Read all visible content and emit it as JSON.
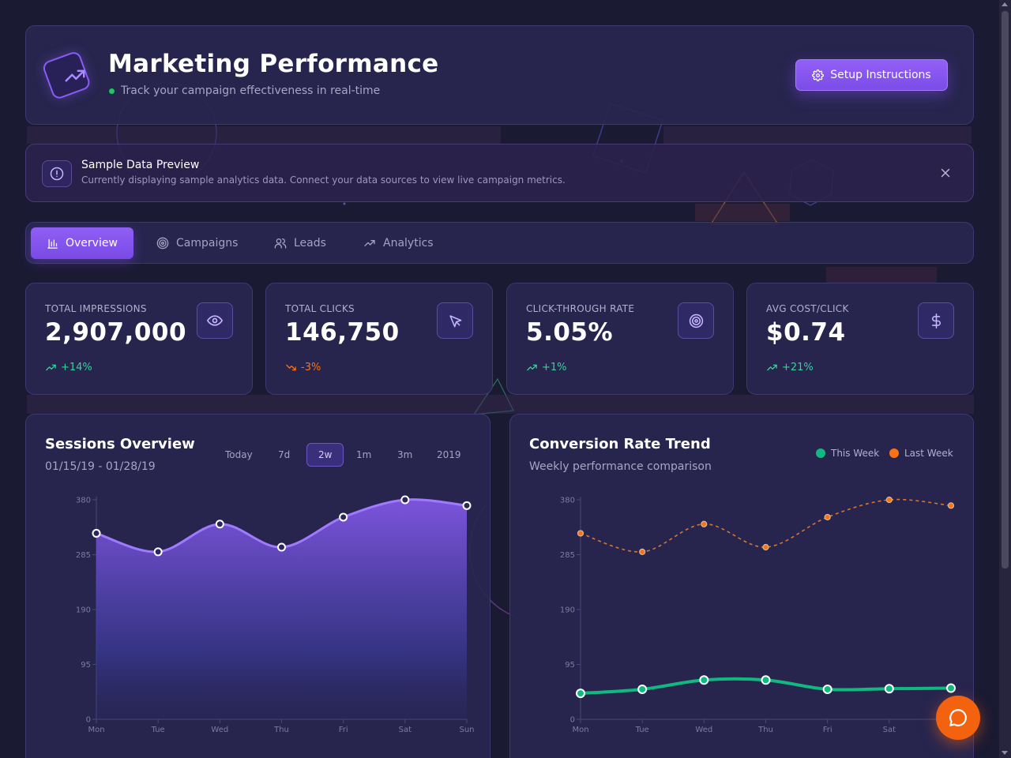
{
  "header": {
    "title": "Marketing Performance",
    "subtitle": "Track your campaign effectiveness in real-time",
    "setup_label": "Setup Instructions",
    "logo_icon": "trending-up-icon",
    "setup_icon": "gear-icon"
  },
  "notice": {
    "title": "Sample Data Preview",
    "text": "Currently displaying sample analytics data. Connect your data sources to view live campaign metrics.",
    "icon": "alert-circle-icon",
    "close_icon": "close-icon"
  },
  "tabs": [
    {
      "label": "Overview",
      "icon": "bar-chart-icon",
      "active": true
    },
    {
      "label": "Campaigns",
      "icon": "target-icon",
      "active": false
    },
    {
      "label": "Leads",
      "icon": "users-icon",
      "active": false
    },
    {
      "label": "Analytics",
      "icon": "trending-up-icon",
      "active": false
    }
  ],
  "stats": [
    {
      "label": "TOTAL IMPRESSIONS",
      "value": "2,907,000",
      "delta": "+14%",
      "trend": "up",
      "icon": "eye-icon"
    },
    {
      "label": "TOTAL CLICKS",
      "value": "146,750",
      "delta": "-3%",
      "trend": "down",
      "icon": "cursor-icon"
    },
    {
      "label": "CLICK-THROUGH RATE",
      "value": "5.05%",
      "delta": "+1%",
      "trend": "up",
      "icon": "target-icon"
    },
    {
      "label": "AVG COST/CLICK",
      "value": "$0.74",
      "delta": "+21%",
      "trend": "up",
      "icon": "dollar-icon"
    }
  ],
  "colors": {
    "accent": "#8b5cf6",
    "up": "#34d399",
    "down": "#f97316",
    "this_week": "#10b981",
    "last_week": "#f97316"
  },
  "sessions": {
    "title": "Sessions Overview",
    "date_range": "01/15/19 - 01/28/19",
    "ranges": [
      "Today",
      "7d",
      "2w",
      "1m",
      "3m",
      "2019"
    ],
    "active_range": "2w"
  },
  "conversion": {
    "title": "Conversion Rate Trend",
    "subtitle": "Weekly performance comparison",
    "legend": [
      "This Week",
      "Last Week"
    ]
  },
  "chart_data": [
    {
      "type": "area",
      "title": "Sessions Overview",
      "categories": [
        "Mon",
        "Tue",
        "Wed",
        "Thu",
        "Fri",
        "Sat",
        "Sun"
      ],
      "values": [
        322,
        290,
        338,
        298,
        350,
        380,
        370
      ],
      "y_ticks": [
        0,
        95,
        190,
        285,
        380
      ],
      "ylim": [
        0,
        380
      ],
      "grid": false
    },
    {
      "type": "line",
      "title": "Conversion Rate Trend",
      "categories": [
        "Mon",
        "Tue",
        "Wed",
        "Thu",
        "Fri",
        "Sat",
        "Sun"
      ],
      "series": [
        {
          "name": "This Week",
          "values": [
            45,
            52,
            68,
            68,
            52,
            53,
            54
          ]
        },
        {
          "name": "Last Week",
          "values": [
            322,
            290,
            338,
            298,
            350,
            380,
            370
          ]
        }
      ],
      "y_ticks": [
        0,
        95,
        190,
        285,
        380
      ],
      "ylim": [
        0,
        380
      ],
      "legend": "top-right",
      "grid": false
    }
  ]
}
